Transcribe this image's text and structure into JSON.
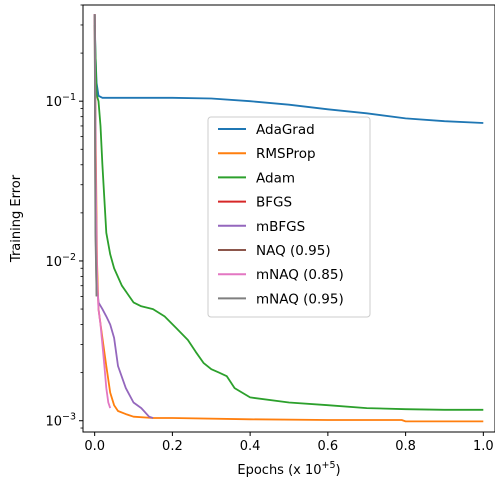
{
  "chart_data": {
    "type": "line",
    "title": "",
    "xlabel": "Epochs (x 10",
    "xlabel_exponent": "+5",
    "xlabel_suffix": ")",
    "ylabel": "Training Error",
    "xlim": [
      -0.03,
      1.03
    ],
    "ylim": [
      0.00085,
      0.4
    ],
    "yscale": "log",
    "x_ticks": [
      0.0,
      0.2,
      0.4,
      0.6,
      0.8,
      1.0
    ],
    "x_tick_labels": [
      "0.0",
      "0.2",
      "0.4",
      "0.6",
      "0.8",
      "1.0"
    ],
    "y_ticks": [
      0.001,
      0.01,
      0.1
    ],
    "y_tick_labels": [
      {
        "base": "10",
        "exp": "−3"
      },
      {
        "base": "10",
        "exp": "−2"
      },
      {
        "base": "10",
        "exp": "−1"
      }
    ],
    "grid": false,
    "legend_position": "center",
    "series": [
      {
        "name": "AdaGrad",
        "color": "#1f77b4",
        "x": [
          0.0,
          0.002,
          0.005,
          0.01,
          0.02,
          0.1,
          0.2,
          0.3,
          0.4,
          0.5,
          0.6,
          0.7,
          0.8,
          0.9,
          1.0
        ],
        "y": [
          0.35,
          0.2,
          0.13,
          0.108,
          0.105,
          0.105,
          0.105,
          0.104,
          0.1,
          0.095,
          0.089,
          0.084,
          0.078,
          0.075,
          0.073
        ]
      },
      {
        "name": "RMSProp",
        "color": "#ff7f0e",
        "x": [
          0.0,
          0.003,
          0.006,
          0.01,
          0.02,
          0.03,
          0.04,
          0.05,
          0.06,
          0.08,
          0.1,
          0.15,
          0.2,
          0.4,
          0.6,
          0.79,
          0.8,
          1.0
        ],
        "y": [
          0.35,
          0.05,
          0.01,
          0.005,
          0.0033,
          0.0022,
          0.0015,
          0.00125,
          0.00115,
          0.0011,
          0.00106,
          0.00104,
          0.00104,
          0.00102,
          0.00101,
          0.00101,
          0.00099,
          0.00099
        ]
      },
      {
        "name": "Adam",
        "color": "#2ca02c",
        "x": [
          0.0,
          0.005,
          0.01,
          0.015,
          0.02,
          0.03,
          0.04,
          0.05,
          0.07,
          0.1,
          0.12,
          0.15,
          0.18,
          0.21,
          0.24,
          0.26,
          0.28,
          0.3,
          0.32,
          0.34,
          0.36,
          0.4,
          0.5,
          0.6,
          0.7,
          0.8,
          0.9,
          1.0
        ],
        "y": [
          0.3,
          0.11,
          0.1,
          0.07,
          0.04,
          0.015,
          0.011,
          0.009,
          0.007,
          0.0055,
          0.0052,
          0.005,
          0.0045,
          0.0038,
          0.0032,
          0.0027,
          0.0023,
          0.0021,
          0.002,
          0.0019,
          0.0016,
          0.0014,
          0.0013,
          0.00125,
          0.0012,
          0.00118,
          0.00117,
          0.00117
        ]
      },
      {
        "name": "BFGS",
        "color": "#d62728",
        "x": [
          0.0,
          0.002,
          0.005
        ],
        "y": [
          0.35,
          0.03,
          0.008
        ]
      },
      {
        "name": "mBFGS",
        "color": "#9467bd",
        "x": [
          0.0,
          0.003,
          0.006,
          0.01,
          0.02,
          0.03,
          0.04,
          0.05,
          0.06,
          0.08,
          0.1,
          0.12,
          0.14,
          0.15
        ],
        "y": [
          0.35,
          0.03,
          0.007,
          0.0055,
          0.005,
          0.0045,
          0.004,
          0.0033,
          0.0022,
          0.0016,
          0.0013,
          0.0012,
          0.00106,
          0.00104
        ]
      },
      {
        "name": "NAQ (0.95)",
        "color": "#8c564b",
        "x": [
          0.0,
          0.002,
          0.005
        ],
        "y": [
          0.35,
          0.02,
          0.006
        ]
      },
      {
        "name": "mNAQ (0.85)",
        "color": "#e377c2",
        "x": [
          0.0,
          0.003,
          0.006,
          0.01,
          0.015,
          0.02,
          0.025,
          0.03,
          0.035,
          0.04
        ],
        "y": [
          0.35,
          0.03,
          0.008,
          0.005,
          0.004,
          0.003,
          0.0022,
          0.0016,
          0.0013,
          0.0012
        ]
      },
      {
        "name": "mNAQ (0.95)",
        "color": "#7f7f7f",
        "x": [
          0.0,
          0.002,
          0.005
        ],
        "y": [
          0.35,
          0.015,
          0.006
        ]
      }
    ]
  }
}
